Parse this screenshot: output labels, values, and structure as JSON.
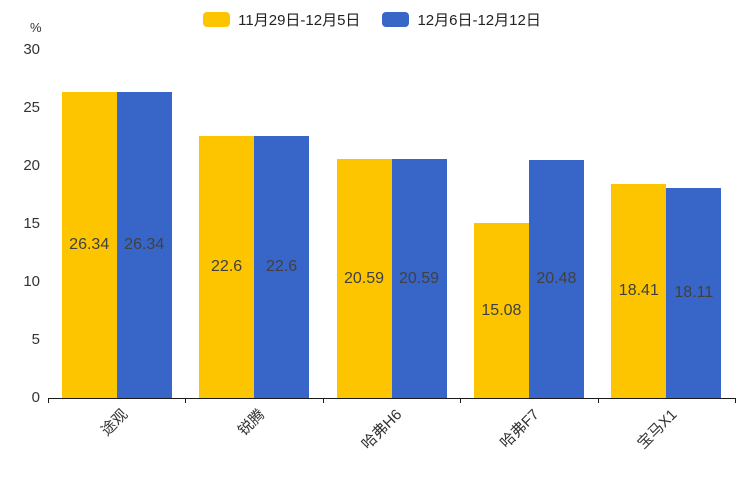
{
  "chart_data": {
    "type": "bar",
    "title": "",
    "categories": [
      "途观",
      "锐腾",
      "哈弗H6",
      "哈弗F7",
      "宝马X1"
    ],
    "series": [
      {
        "name": "11月29日-12月5日",
        "color": "#FDC500",
        "values": [
          26.34,
          22.6,
          20.59,
          15.08,
          18.41
        ]
      },
      {
        "name": "12月6日-12月12日",
        "color": "#3866C8",
        "values": [
          26.34,
          22.6,
          20.59,
          20.48,
          18.11
        ]
      }
    ],
    "xlabel": "",
    "ylabel": "%",
    "ylim": [
      0,
      30
    ],
    "yticks": [
      0,
      5,
      10,
      15,
      20,
      25,
      30
    ],
    "grid": false,
    "legend_position": "top",
    "value_labels": true,
    "value_label_position": "center",
    "axis_color": "#1a1a1a",
    "text_color": "#333333"
  }
}
